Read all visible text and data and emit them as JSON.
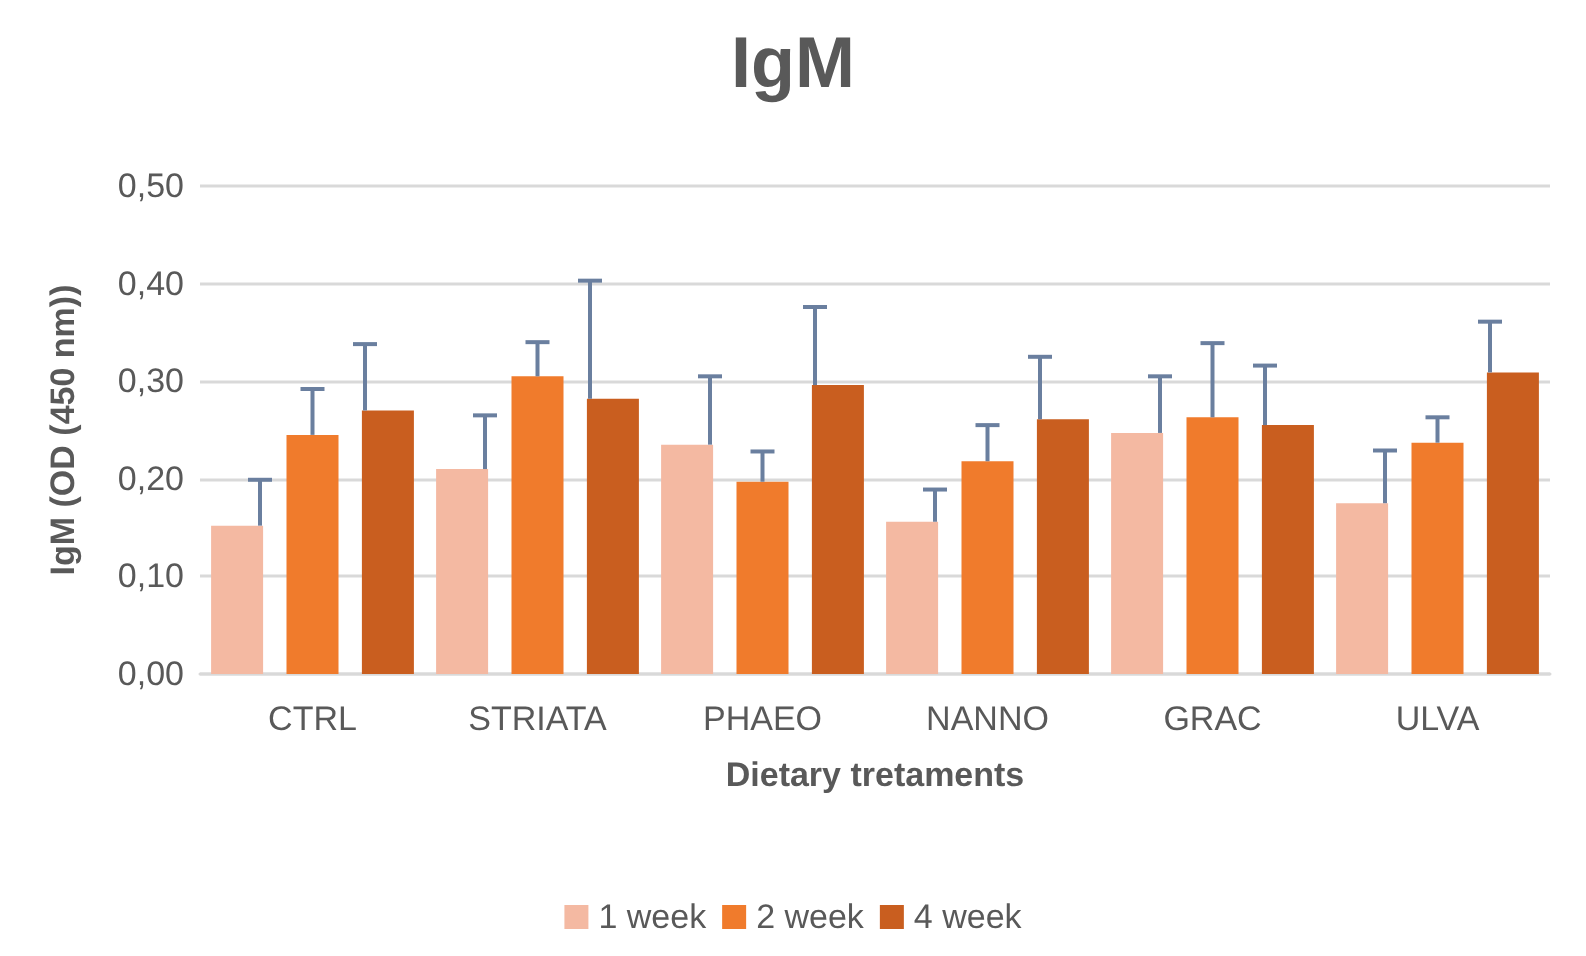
{
  "chart_data": {
    "type": "bar",
    "title": "IgM",
    "xlabel": "Dietary tretaments",
    "ylabel": "IgM (OD (450 nm))",
    "categories": [
      "CTRL",
      "STRIATA",
      "PHAEO",
      "NANNO",
      "GRAC",
      "ULVA"
    ],
    "series": [
      {
        "name": "1 week",
        "color": "#f4b9a2",
        "values": [
          0.152,
          0.21,
          0.235,
          0.156,
          0.247,
          0.175
        ],
        "errors": [
          [
            0.152,
            0.199
          ],
          [
            0.21,
            0.265
          ],
          [
            0.235,
            0.305
          ],
          [
            0.156,
            0.189
          ],
          [
            0.247,
            0.305
          ],
          [
            0.175,
            0.229
          ]
        ]
      },
      {
        "name": "2 week",
        "color": "#f07b2c",
        "values": [
          0.245,
          0.305,
          0.197,
          0.218,
          0.263,
          0.237
        ],
        "errors": [
          [
            0.245,
            0.292
          ],
          [
            0.305,
            0.34
          ],
          [
            0.197,
            0.228
          ],
          [
            0.218,
            0.255
          ],
          [
            0.263,
            0.339
          ],
          [
            0.237,
            0.263
          ]
        ]
      },
      {
        "name": "4 week",
        "color": "#c95e1f",
        "values": [
          0.27,
          0.282,
          0.296,
          0.261,
          0.255,
          0.309
        ],
        "errors": [
          [
            0.27,
            0.338
          ],
          [
            0.282,
            0.403
          ],
          [
            0.296,
            0.376
          ],
          [
            0.261,
            0.325
          ],
          [
            0.255,
            0.316
          ],
          [
            0.309,
            0.361
          ]
        ]
      }
    ],
    "ylim": [
      0,
      0.5
    ],
    "yticks": [
      {
        "value": 0,
        "label": "0,00"
      },
      {
        "value": 0.1,
        "label": "0,10"
      },
      {
        "value": 0.2,
        "label": "0,20"
      },
      {
        "value": 0.3,
        "label": "0,30"
      },
      {
        "value": 0.4,
        "label": "0,40"
      },
      {
        "value": 0.5,
        "label": "0,50"
      }
    ],
    "grid": "y",
    "legend": "bottom"
  }
}
